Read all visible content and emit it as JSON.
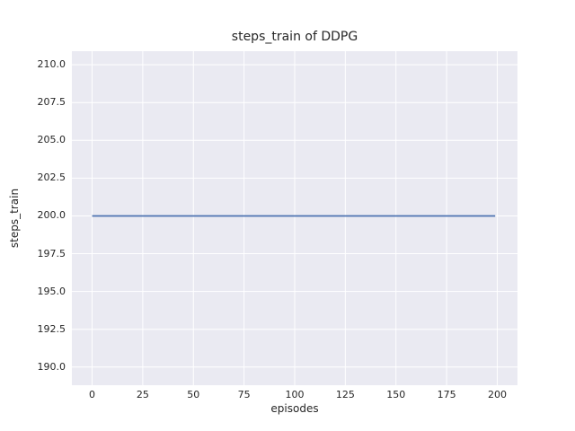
{
  "chart_data": {
    "type": "line",
    "title": "steps_train of DDPG",
    "xlabel": "episodes",
    "ylabel": "steps_train",
    "xlim": [
      -10,
      210
    ],
    "ylim": [
      188.8,
      210.9
    ],
    "xticks": [
      0,
      25,
      50,
      75,
      100,
      125,
      150,
      175,
      200
    ],
    "xtick_labels": [
      "0",
      "25",
      "50",
      "75",
      "100",
      "125",
      "150",
      "175",
      "200"
    ],
    "yticks": [
      190.0,
      192.5,
      195.0,
      197.5,
      200.0,
      202.5,
      205.0,
      207.5,
      210.0
    ],
    "ytick_labels": [
      "190.0",
      "192.5",
      "195.0",
      "197.5",
      "200.0",
      "202.5",
      "205.0",
      "207.5",
      "210.0"
    ],
    "grid": true,
    "legend": "none",
    "series": [
      {
        "name": "steps_train",
        "x": [
          0,
          199
        ],
        "y": [
          200,
          200
        ],
        "color": "#4c72b0"
      }
    ],
    "style": {
      "figure_bg": "#ffffff",
      "plot_bg": "#eaeaf2",
      "grid_color": "#ffffff",
      "text_color": "#262626"
    }
  }
}
